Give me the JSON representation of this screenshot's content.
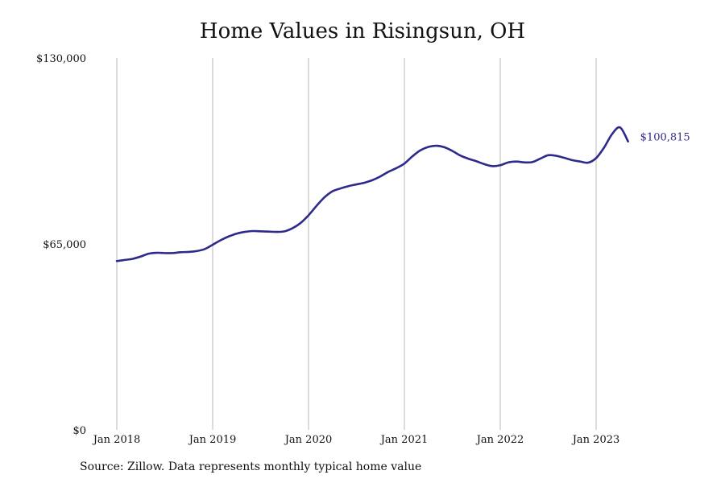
{
  "colors": {
    "line": "#2e2a8c",
    "grid": "#b9b9b9",
    "text": "#111111"
  },
  "source_note": "Source: Zillow. Data represents monthly typical home value",
  "chart_data": {
    "type": "line",
    "title": "Home Values in Risingsun, OH",
    "xlabel": "",
    "ylabel": "",
    "grid": "vertical",
    "xlim": [
      "2018-01",
      "2023-10"
    ],
    "ylim": [
      0,
      130000
    ],
    "y_ticks": [
      {
        "value": 0,
        "label": "$0"
      },
      {
        "value": 65000,
        "label": "$65,000"
      },
      {
        "value": 130000,
        "label": "$130,000"
      }
    ],
    "x_ticks": [
      {
        "value": "2018-01",
        "label": "Jan 2018"
      },
      {
        "value": "2019-01",
        "label": "Jan 2019"
      },
      {
        "value": "2020-01",
        "label": "Jan 2020"
      },
      {
        "value": "2021-01",
        "label": "Jan 2021"
      },
      {
        "value": "2022-01",
        "label": "Jan 2022"
      },
      {
        "value": "2023-01",
        "label": "Jan 2023"
      }
    ],
    "end_label": "$100,815",
    "series": [
      {
        "x": [
          "2018-01",
          "2018-02",
          "2018-03",
          "2018-04",
          "2018-05",
          "2018-06",
          "2018-07",
          "2018-08",
          "2018-09",
          "2018-10",
          "2018-11",
          "2018-12",
          "2019-01",
          "2019-02",
          "2019-03",
          "2019-04",
          "2019-05",
          "2019-06",
          "2019-07",
          "2019-08",
          "2019-09",
          "2019-10",
          "2019-11",
          "2019-12",
          "2020-01",
          "2020-02",
          "2020-03",
          "2020-04",
          "2020-05",
          "2020-06",
          "2020-07",
          "2020-08",
          "2020-09",
          "2020-10",
          "2020-11",
          "2020-12",
          "2021-01",
          "2021-02",
          "2021-03",
          "2021-04",
          "2021-05",
          "2021-06",
          "2021-07",
          "2021-08",
          "2021-09",
          "2021-10",
          "2021-11",
          "2021-12",
          "2022-01",
          "2022-02",
          "2022-03",
          "2022-04",
          "2022-05",
          "2022-06",
          "2022-07",
          "2022-08",
          "2022-09",
          "2022-10",
          "2022-11",
          "2022-12",
          "2023-01",
          "2023-02",
          "2023-03",
          "2023-04",
          "2023-05"
        ],
        "values": [
          59000,
          59400,
          59800,
          60600,
          61600,
          61900,
          61800,
          61800,
          62100,
          62200,
          62500,
          63200,
          64700,
          66300,
          67600,
          68600,
          69200,
          69500,
          69400,
          69300,
          69200,
          69400,
          70500,
          72300,
          75000,
          78300,
          81300,
          83400,
          84400,
          85200,
          85800,
          86400,
          87300,
          88600,
          90200,
          91500,
          93100,
          95600,
          97700,
          98900,
          99300,
          98800,
          97500,
          95900,
          94800,
          93900,
          92900,
          92200,
          92500,
          93500,
          93800,
          93500,
          93600,
          94800,
          96000,
          95800,
          95100,
          94300,
          93800,
          93400,
          95000,
          98700,
          103400,
          105700,
          100815
        ]
      }
    ]
  }
}
